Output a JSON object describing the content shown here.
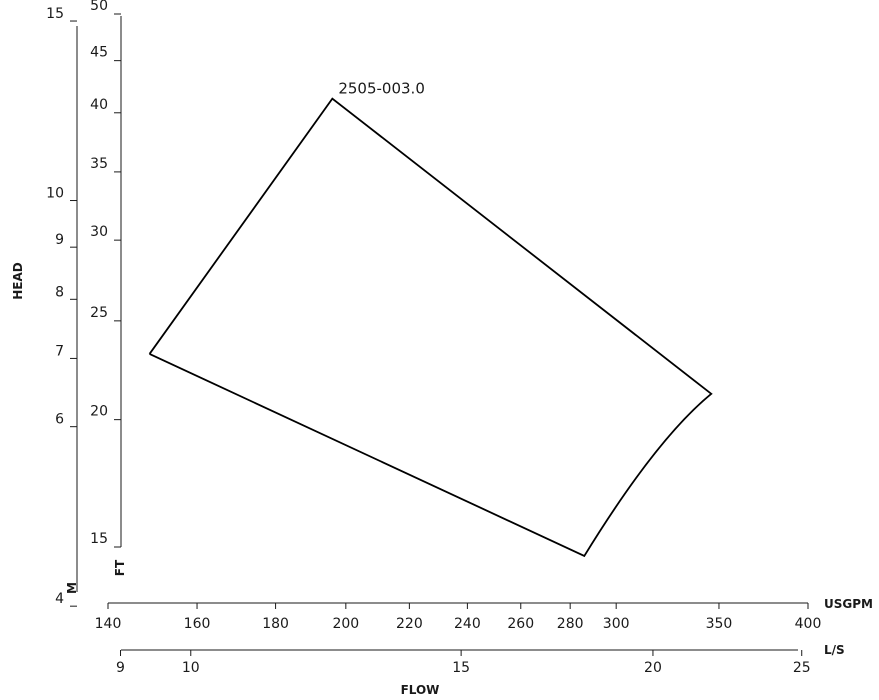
{
  "chart_data": {
    "type": "line",
    "title": "",
    "series": [
      {
        "name": "2505-003.0",
        "points": [
          {
            "usgpm": 149,
            "ft": 23.2
          },
          {
            "usgpm": 196,
            "ft": 41.3
          },
          {
            "usgpm": 346,
            "ft": 21.2
          },
          {
            "usgpm": 286,
            "ft": 14.7
          },
          {
            "usgpm": 149,
            "ft": 23.2
          }
        ]
      }
    ],
    "axes": {
      "head_ft": {
        "unit": "FT",
        "ticks": [
          15,
          20,
          25,
          30,
          35,
          40,
          45,
          50
        ],
        "range": [
          15,
          50
        ]
      },
      "head_m": {
        "unit": "M",
        "ticks": [
          4,
          6,
          7,
          8,
          9,
          10,
          15
        ]
      },
      "flow_usgpm": {
        "unit": "USGPM",
        "scale": "log",
        "ticks": [
          140,
          160,
          180,
          200,
          220,
          240,
          260,
          280,
          300,
          350,
          400
        ],
        "range": [
          140,
          400
        ]
      },
      "flow_ls": {
        "unit": "L/S",
        "ticks": [
          9,
          10,
          15,
          20,
          25
        ]
      }
    },
    "ylabel": "HEAD",
    "xlabel": "FLOW",
    "grid": false
  }
}
